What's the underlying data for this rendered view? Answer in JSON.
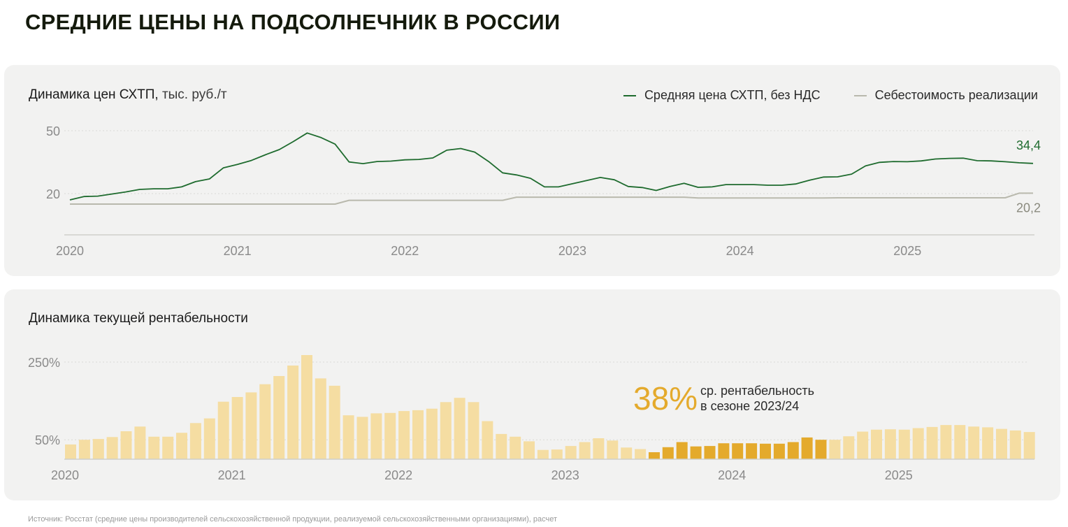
{
  "title": "СРЕДНИЕ ЦЕНЫ НА ПОДСОЛНЕЧНИК В РОССИИ",
  "source": "Источник: Росстат (средние цены производителей сельскохозяйственной продукции, реализуемой сельскохозяйственными организациями), расчет",
  "colors": {
    "price": "#1e6b2e",
    "cost": "#b9b9ad",
    "bar_light": "#f5dda2",
    "bar_dark": "#e4aa2c",
    "highlight": "#e4aa2c"
  },
  "chart_data": [
    {
      "type": "line",
      "title": "Динамика цен СХТП,",
      "unit": "тыс. руб./т",
      "x_ticks": [
        "2020",
        "2021",
        "2022",
        "2023",
        "2024",
        "2025"
      ],
      "y_ticks": [
        "50",
        "20"
      ],
      "ylim": [
        0,
        55
      ],
      "grid": true,
      "legend_position": "top-right",
      "end_labels": {
        "price": "34,4",
        "cost": "20,2"
      },
      "series": [
        {
          "key": "price",
          "name": "Средняя цена СХТП, без НДС",
          "values": [
            17.0,
            18.6,
            18.8,
            19.8,
            20.8,
            22.0,
            22.3,
            22.3,
            23.2,
            25.7,
            27.0,
            32.3,
            33.9,
            35.8,
            38.5,
            41.0,
            44.8,
            48.9,
            46.7,
            43.6,
            35.1,
            34.3,
            35.3,
            35.5,
            36.1,
            36.3,
            37.0,
            40.7,
            41.5,
            39.8,
            35.3,
            29.9,
            28.9,
            27.3,
            23.2,
            23.2,
            24.7,
            26.2,
            27.7,
            26.6,
            23.4,
            22.9,
            21.5,
            23.4,
            24.9,
            23.0,
            23.2,
            24.3,
            24.3,
            24.3,
            24.0,
            24.0,
            24.6,
            26.4,
            27.9,
            28.0,
            29.3,
            33.2,
            34.9,
            35.3,
            35.2,
            35.6,
            36.5,
            36.8,
            36.9,
            35.7,
            35.6,
            35.2,
            34.7,
            34.4
          ]
        },
        {
          "key": "cost",
          "name": "Себестоимость реализации",
          "values": [
            15.0,
            15.0,
            15.0,
            15.0,
            15.0,
            15.0,
            15.0,
            15.0,
            15.0,
            15.0,
            15.0,
            15.0,
            15.0,
            15.0,
            15.0,
            15.0,
            15.0,
            15.0,
            15.0,
            15.0,
            16.8,
            16.8,
            16.8,
            16.8,
            16.8,
            16.8,
            16.8,
            16.8,
            16.8,
            16.8,
            16.8,
            16.8,
            18.3,
            18.3,
            18.3,
            18.3,
            18.3,
            18.3,
            18.3,
            18.3,
            18.3,
            18.3,
            18.3,
            18.3,
            18.3,
            17.9,
            17.9,
            17.9,
            17.9,
            17.9,
            17.9,
            17.9,
            17.9,
            17.9,
            17.9,
            18.0,
            18.0,
            18.0,
            18.0,
            18.0,
            18.0,
            18.0,
            18.0,
            18.0,
            18.0,
            18.0,
            18.0,
            18.0,
            20.2,
            20.2
          ]
        }
      ]
    },
    {
      "type": "bar",
      "title": "Динамика текущей рентабельности",
      "x_ticks": [
        "2020",
        "2021",
        "2022",
        "2023",
        "2024",
        "2025"
      ],
      "y_ticks": [
        "250%",
        "50%"
      ],
      "ylim": [
        0,
        265
      ],
      "grid": true,
      "values": [
        38,
        50,
        52,
        57,
        72,
        84,
        58,
        58,
        68,
        93,
        105,
        148,
        160,
        172,
        193,
        214,
        241,
        268,
        208,
        189,
        113,
        109,
        118,
        119,
        124,
        126,
        130,
        147,
        158,
        147,
        98,
        65,
        58,
        46,
        24,
        25,
        34,
        44,
        54,
        48,
        30,
        26,
        18,
        31,
        44,
        33,
        34,
        41,
        41,
        41,
        40,
        40,
        44,
        56,
        50,
        50,
        59,
        71,
        76,
        77,
        76,
        80,
        83,
        88,
        88,
        84,
        82,
        78,
        74,
        70
      ],
      "highlight_range": [
        42,
        54
      ],
      "annotation": {
        "value": "38%",
        "text_line1": "ср. рентабельность",
        "text_line2": "в сезоне 2023/24"
      }
    }
  ]
}
